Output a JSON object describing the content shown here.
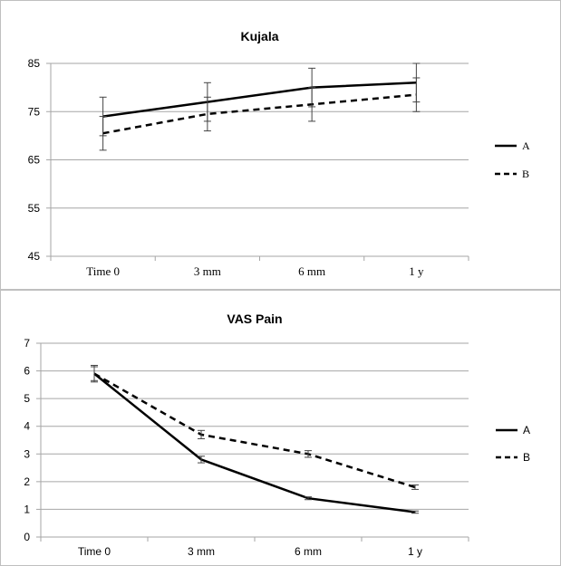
{
  "chart_data": [
    {
      "type": "line",
      "title": "Kujala",
      "xlabel": "",
      "ylabel": "",
      "categories": [
        "Time 0",
        "3 mm",
        "6 mm",
        "1 y"
      ],
      "ylim": [
        45,
        85
      ],
      "yticks": [
        "45",
        "55",
        "65",
        "75",
        "85"
      ],
      "grid": true,
      "legend": "right",
      "series": [
        {
          "name": "A",
          "style": "solid",
          "values": [
            74,
            77,
            80,
            81
          ],
          "err": [
            4,
            4,
            4,
            4
          ]
        },
        {
          "name": "B",
          "style": "dashed",
          "values": [
            70.5,
            74.5,
            76.5,
            78.5
          ],
          "err": [
            3.5,
            3.5,
            3.5,
            3.5
          ]
        }
      ]
    },
    {
      "type": "line",
      "title": "VAS Pain",
      "xlabel": "",
      "ylabel": "",
      "categories": [
        "Time 0",
        "3 mm",
        "6 mm",
        "1 y"
      ],
      "ylim": [
        0,
        7
      ],
      "yticks": [
        "0",
        "1",
        "2",
        "3",
        "4",
        "5",
        "6",
        "7"
      ],
      "grid": true,
      "legend": "right",
      "series": [
        {
          "name": "A",
          "style": "solid",
          "values": [
            5.9,
            2.8,
            1.4,
            0.9
          ],
          "err": [
            0.25,
            0.12,
            0.05,
            0.04
          ]
        },
        {
          "name": "B",
          "style": "dashed",
          "values": [
            5.9,
            3.7,
            3.0,
            1.8
          ],
          "err": [
            0.3,
            0.15,
            0.12,
            0.08
          ]
        }
      ]
    }
  ]
}
